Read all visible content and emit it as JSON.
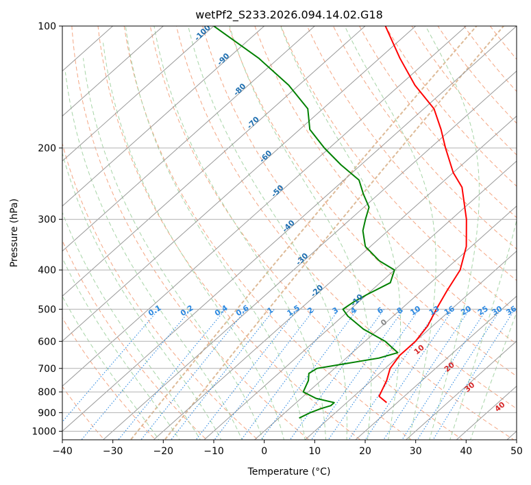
{
  "chart_data": {
    "type": "line",
    "title": "wetPf2_S233.2026.094.14.02.G18",
    "xlabel": "Temperature (°C)",
    "ylabel": "Pressure (hPa)",
    "xlim": [
      -40,
      50
    ],
    "ylim": [
      1050,
      100
    ],
    "y_scale": "log",
    "skew_deg_per_decade_C": 90,
    "x_ticks": [
      -40,
      -30,
      -20,
      -10,
      0,
      10,
      20,
      30,
      40,
      50
    ],
    "y_ticks": [
      100,
      200,
      300,
      400,
      500,
      600,
      700,
      800,
      900,
      1000
    ],
    "grid": true,
    "colors": {
      "temperature": "#ff0000",
      "dewpoint": "#008000",
      "isotherm": "#999999",
      "dry_adiabat": "#f4a582",
      "moist_adiabat": "#a6d4a6",
      "mixing_ratio": "#2c88e0",
      "isotherm_label": "#1f6fb0",
      "theta_label": "#d62728",
      "zero_label": "#888888",
      "frost_curve": "#d9b38c"
    },
    "series": [
      {
        "name": "Temperature",
        "color": "#ff0000",
        "points": [
          [
            850,
            17.9
          ],
          [
            820,
            15.0
          ],
          [
            750,
            13.0
          ],
          [
            700,
            11.0
          ],
          [
            650,
            10.0
          ],
          [
            600,
            10.0
          ],
          [
            550,
            9.0
          ],
          [
            500,
            7.0
          ],
          [
            450,
            5.0
          ],
          [
            400,
            3.0
          ],
          [
            350,
            -1.0
          ],
          [
            300,
            -7.0
          ],
          [
            250,
            -15.0
          ],
          [
            230,
            -20.0
          ],
          [
            200,
            -27.0
          ],
          [
            180,
            -32.0
          ],
          [
            160,
            -38.0
          ],
          [
            140,
            -47.0
          ],
          [
            120,
            -56.0
          ],
          [
            100,
            -66.0
          ]
        ]
      },
      {
        "name": "Dewpoint",
        "color": "#008000",
        "points": [
          [
            928,
            4.0
          ],
          [
            900,
            5.0
          ],
          [
            880,
            6.2
          ],
          [
            865,
            7.5
          ],
          [
            850,
            7.5
          ],
          [
            830,
            3.0
          ],
          [
            800,
            -1.0
          ],
          [
            750,
            -2.5
          ],
          [
            720,
            -4.0
          ],
          [
            700,
            -3.5
          ],
          [
            660,
            6.5
          ],
          [
            640,
            9.0
          ],
          [
            600,
            4.0
          ],
          [
            560,
            -3.0
          ],
          [
            520,
            -9.0
          ],
          [
            500,
            -11.5
          ],
          [
            480,
            -11.0
          ],
          [
            460,
            -10.0
          ],
          [
            430,
            -8.0
          ],
          [
            400,
            -10.0
          ],
          [
            380,
            -15.0
          ],
          [
            350,
            -21.0
          ],
          [
            320,
            -25.0
          ],
          [
            300,
            -27.0
          ],
          [
            280,
            -29.0
          ],
          [
            260,
            -33.0
          ],
          [
            240,
            -37.0
          ],
          [
            220,
            -44.0
          ],
          [
            200,
            -51.0
          ],
          [
            180,
            -58.0
          ],
          [
            160,
            -63.0
          ],
          [
            140,
            -72.0
          ],
          [
            120,
            -84.0
          ],
          [
            100,
            -100.0
          ]
        ]
      }
    ],
    "isotherm_labels": [
      "-100",
      "-90",
      "-80",
      "-70",
      "-60",
      "-50",
      "-40",
      "-30",
      "-20",
      "-10"
    ],
    "isotherm_label_values": [
      -100,
      -90,
      -80,
      -70,
      -60,
      -50,
      -40,
      -30,
      -20,
      -10
    ],
    "mixing_ratio_labels": [
      "0.1",
      "0.2",
      "0.4",
      "0.6",
      "1",
      "1.5",
      "2",
      "3",
      "4",
      "6",
      "8",
      "10",
      "13",
      "16",
      "20",
      "25",
      "30",
      "36"
    ],
    "mixing_ratio_values": [
      0.1,
      0.2,
      0.4,
      0.6,
      1,
      1.5,
      2,
      3,
      4,
      6,
      8,
      10,
      13,
      16,
      20,
      25,
      30,
      36
    ],
    "theta_labels": [
      "0",
      "10",
      "20",
      "30",
      "40"
    ],
    "theta_label_values": [
      0,
      10,
      20,
      30,
      40
    ]
  }
}
